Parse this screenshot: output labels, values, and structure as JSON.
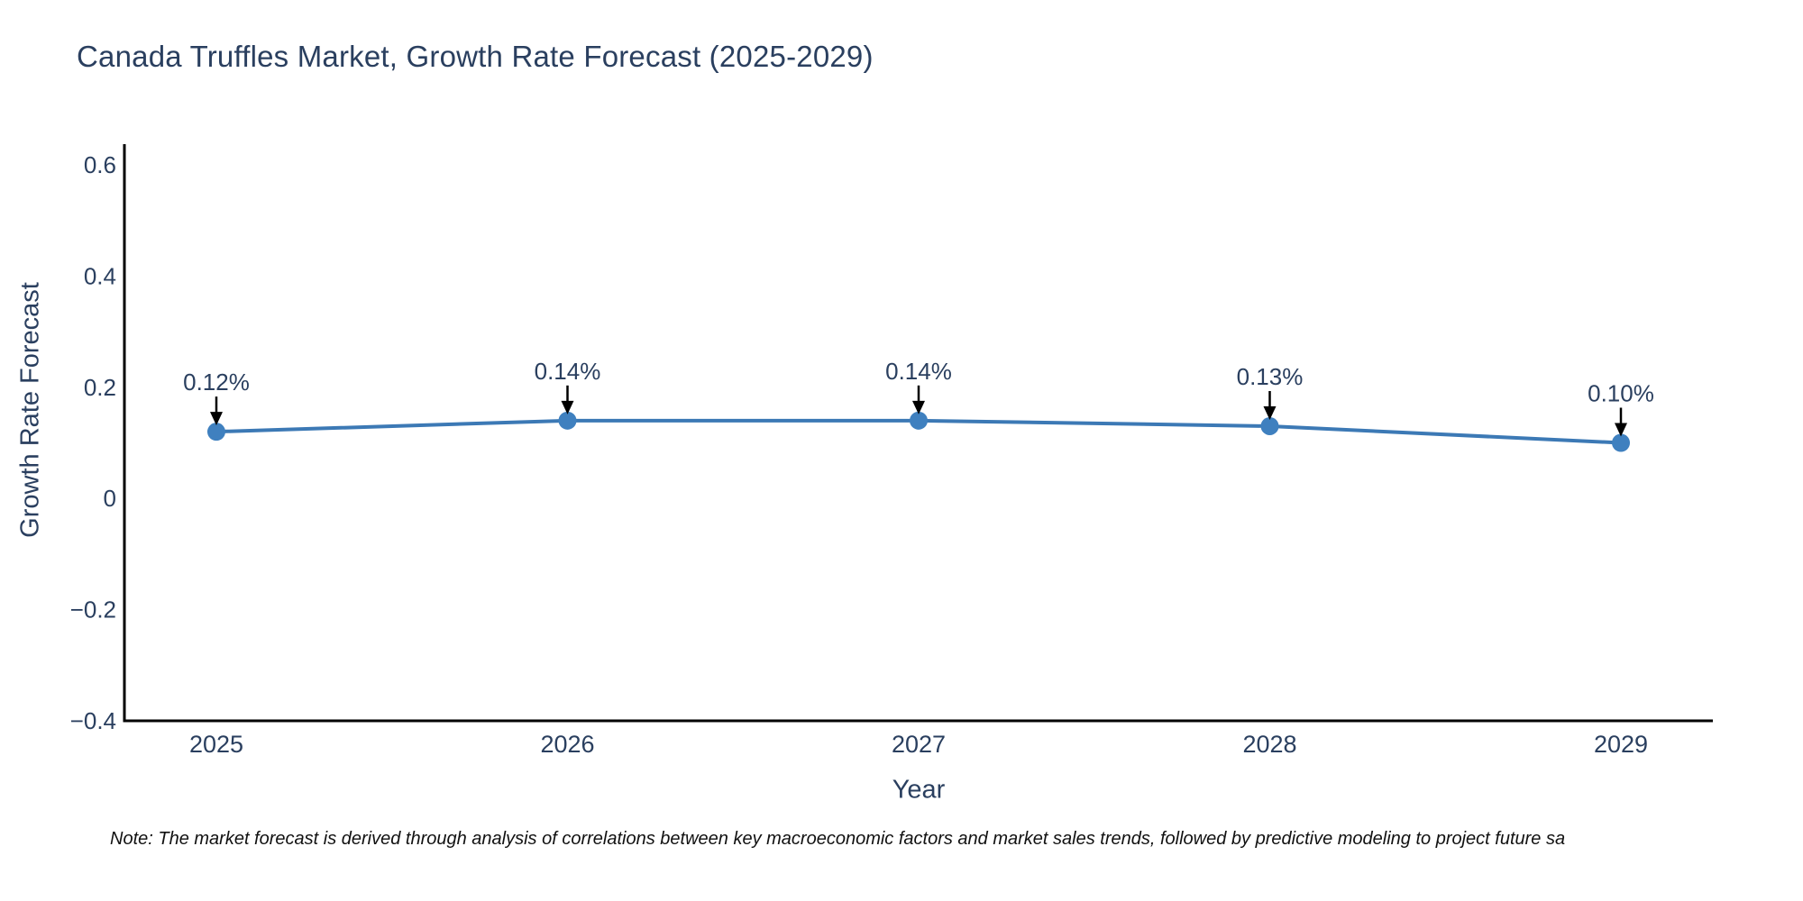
{
  "chart": {
    "title": "Canada Truffles Market, Growth Rate Forecast (2025-2029)",
    "note": "Note: The market forecast is derived through analysis of correlations between key macroeconomic factors and market sales trends, followed by predictive modeling to project future sa",
    "colors": {
      "line": "#3c79b5",
      "marker": "#3f80bf",
      "axis": "#000000",
      "arrow": "#000000",
      "text": "#2a3f5f",
      "note_text": "#111111",
      "background": "#ffffff"
    }
  },
  "chart_data": {
    "type": "line",
    "title": "Canada Truffles Market, Growth Rate Forecast (2025-2029)",
    "xlabel": "Year",
    "ylabel": "Growth Rate Forecast",
    "x": [
      2025,
      2026,
      2027,
      2028,
      2029
    ],
    "values": [
      0.12,
      0.14,
      0.14,
      0.13,
      0.1
    ],
    "point_labels": [
      "0.12%",
      "0.14%",
      "0.14%",
      "0.13%",
      "0.10%"
    ],
    "series": [
      {
        "name": "Growth Rate Forecast",
        "values": [
          0.12,
          0.14,
          0.14,
          0.13,
          0.1
        ]
      }
    ],
    "xticks": [
      "2025",
      "2026",
      "2027",
      "2028",
      "2029"
    ],
    "yticks": {
      "values": [
        0.6,
        0.4,
        0.2,
        0,
        -0.2,
        -0.4
      ],
      "labels": [
        "0.6",
        "0.4",
        "0.2",
        "0",
        "−0.2",
        "−0.4"
      ]
    },
    "ylim": [
      -0.4,
      0.64
    ],
    "grid": false,
    "legend": "none",
    "annotations": "down-arrows-to-points"
  }
}
